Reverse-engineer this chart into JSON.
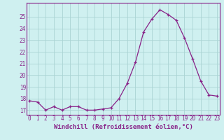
{
  "x": [
    0,
    1,
    2,
    3,
    4,
    5,
    6,
    7,
    8,
    9,
    10,
    11,
    12,
    13,
    14,
    15,
    16,
    17,
    18,
    19,
    20,
    21,
    22,
    23
  ],
  "y": [
    17.8,
    17.7,
    17.0,
    17.3,
    17.0,
    17.3,
    17.3,
    17.0,
    17.0,
    17.1,
    17.2,
    18.0,
    19.3,
    21.1,
    23.7,
    24.8,
    25.6,
    25.2,
    24.7,
    23.2,
    21.4,
    19.5,
    18.3,
    18.2
  ],
  "line_color": "#882288",
  "bg_color": "#cff0f0",
  "grid_color": "#aad4d4",
  "xlabel": "Windchill (Refroidissement éolien,°C)",
  "xticks": [
    0,
    1,
    2,
    3,
    4,
    5,
    6,
    7,
    8,
    9,
    10,
    11,
    12,
    13,
    14,
    15,
    16,
    17,
    18,
    19,
    20,
    21,
    22,
    23
  ],
  "yticks": [
    17,
    18,
    19,
    20,
    21,
    22,
    23,
    24,
    25
  ],
  "ylim": [
    16.6,
    26.2
  ],
  "xlim": [
    -0.3,
    23.3
  ],
  "tick_fontsize": 5.5,
  "xlabel_fontsize": 6.5
}
